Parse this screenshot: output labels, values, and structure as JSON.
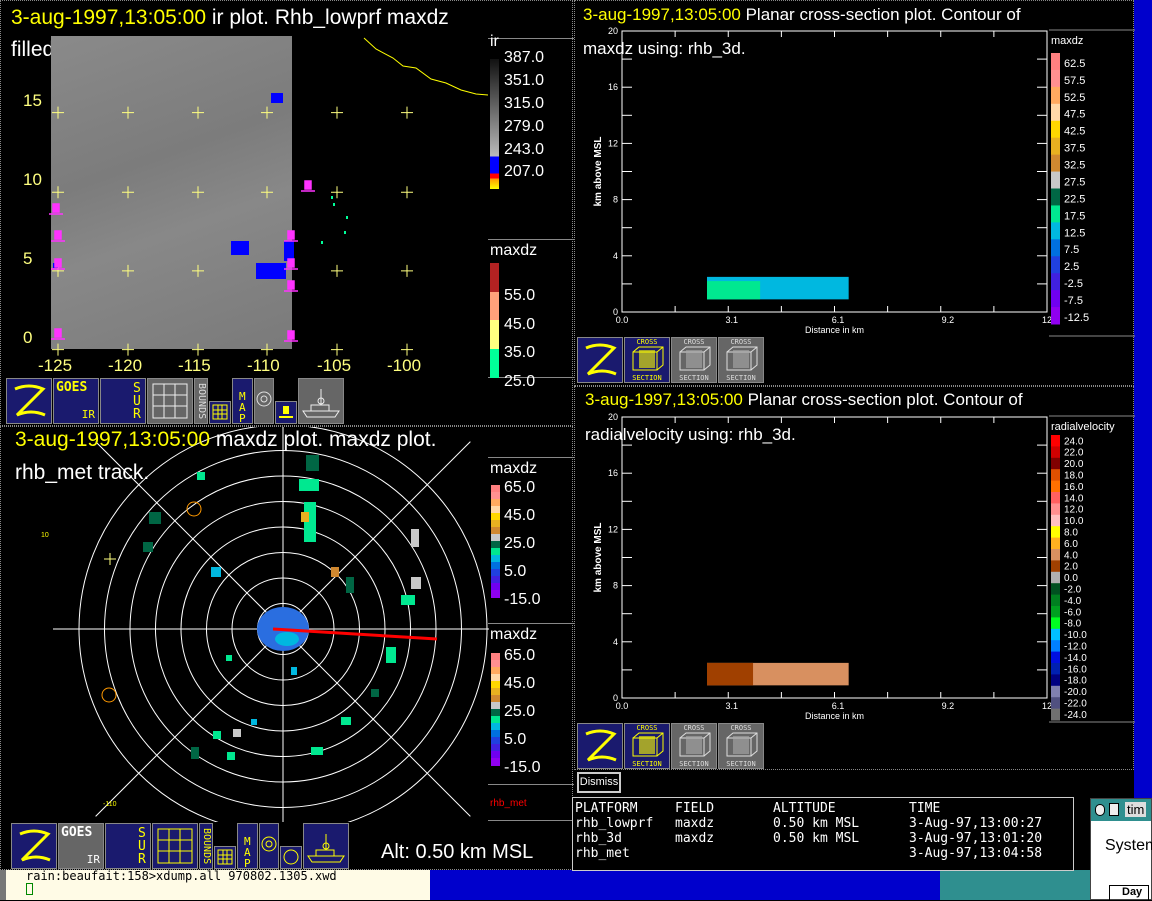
{
  "ir_panel": {
    "timestamp": "3-aug-1997,13:05:00",
    "title_rest": " ir plot.  Rhb_lowprf maxdz",
    "title_line2": "filled contour.",
    "y_ticks": [
      "15",
      "10",
      "5",
      "0"
    ],
    "x_ticks": [
      "-125",
      "-120",
      "-115",
      "-110",
      "-105",
      "-100"
    ],
    "ir_colorbar": {
      "title": "ir",
      "labels": [
        "387.0",
        "351.0",
        "315.0",
        "279.0",
        "243.0",
        "207.0"
      ]
    },
    "maxdz_colorbar": {
      "title": "maxdz",
      "labels": [
        "55.0",
        "45.0",
        "35.0",
        "25.0"
      ],
      "colors": [
        "#b22222",
        "#ffa07a",
        "#ffff80",
        "#00ff99"
      ]
    }
  },
  "radar_panel": {
    "timestamp": "3-aug-1997,13:05:00",
    "title_rest": " maxdz plot.  maxdz plot.",
    "title_line2": "rhb_met track.",
    "colorbar_labels": [
      "65.0",
      "45.0",
      "25.0",
      "5.0",
      "-15.0"
    ],
    "colorbar_title": "maxdz",
    "colorbar_colors": [
      "#ff8080",
      "#ff9090",
      "#ffaa60",
      "#ffd8a8",
      "#ffd700",
      "#e8b020",
      "#d08830",
      "#c8c8c8",
      "#006644",
      "#00e890",
      "#00b8e0",
      "#0070e0",
      "#2040e0",
      "#4020e0",
      "#7000f0",
      "#9000f0"
    ],
    "lat_label": "10",
    "lon_label": "-110",
    "track_legend": "rhb_met",
    "track_color": "#ff0000",
    "alt_label": "Alt: 0.50 km MSL"
  },
  "toolbar_left": {
    "goes": "GOES",
    "ir": "IR",
    "sur": "SUR",
    "bounds": "BOUNDS",
    "map": "MAP"
  },
  "xsec_maxdz": {
    "timestamp": "3-aug-1997,13:05:00",
    "title_rest": " Planar cross-section plot.  Contour of",
    "title_line2": "maxdz using: rhb_3d.",
    "colorbar_title": "maxdz",
    "colorbar_labels": [
      "62.5",
      "57.5",
      "52.5",
      "47.5",
      "42.5",
      "37.5",
      "32.5",
      "27.5",
      "22.5",
      "17.5",
      "12.5",
      "7.5",
      "2.5",
      "-2.5",
      "-7.5",
      "-12.5"
    ],
    "colorbar_colors": [
      "#ff8080",
      "#ff9090",
      "#ffaa60",
      "#ffd8a8",
      "#ffd700",
      "#e8b020",
      "#d08830",
      "#c8c8c8",
      "#006644",
      "#00e890",
      "#00b8e0",
      "#0070e0",
      "#2040e0",
      "#4020e0",
      "#7000f0",
      "#9000f0"
    ],
    "ylabel": "km above MSL",
    "xlabel": "Distance in km",
    "y_ticks": [
      "0",
      "4",
      "8",
      "12",
      "16",
      "20"
    ],
    "x_ticks": [
      "0.0",
      "3.1",
      "6.1",
      "9.2",
      "12"
    ],
    "cells": [
      {
        "x0": 2.4,
        "x1": 6.4,
        "z0": 0.9,
        "z1": 2.5,
        "color": "#00b8e0"
      },
      {
        "x0": 2.4,
        "x1": 3.9,
        "z0": 0.9,
        "z1": 2.2,
        "color": "#00e890"
      }
    ]
  },
  "xsec_vel": {
    "timestamp": "3-aug-1997,13:05:00",
    "title_rest": " Planar cross-section plot.  Contour of",
    "title_line2": "radialvelocity using: rhb_3d.",
    "colorbar_title": "radialvelocity",
    "colorbar_labels": [
      "24.0",
      "22.0",
      "20.0",
      "18.0",
      "16.0",
      "14.0",
      "12.0",
      "10.0",
      "8.0",
      "6.0",
      "4.0",
      "2.0",
      "0.0",
      "-2.0",
      "-4.0",
      "-6.0",
      "-8.0",
      "-10.0",
      "-12.0",
      "-14.0",
      "-16.0",
      "-18.0",
      "-20.0",
      "-22.0",
      "-24.0"
    ],
    "colorbar_colors": [
      "#ff0000",
      "#d00000",
      "#800000",
      "#e05000",
      "#ff7000",
      "#ff6060",
      "#ff9090",
      "#ffc0c0",
      "#ffff00",
      "#ffb020",
      "#d89060",
      "#a04000",
      "#b0b0b0",
      "#005020",
      "#008020",
      "#00a020",
      "#00ff20",
      "#00c0ff",
      "#0080ff",
      "#0010e0",
      "#0020b0",
      "#000080",
      "#8080b0",
      "#505080",
      "#707070"
    ],
    "ylabel": "km above MSL",
    "xlabel": "Distance in km",
    "y_ticks": [
      "0",
      "4",
      "8",
      "12",
      "16",
      "20"
    ],
    "x_ticks": [
      "0.0",
      "3.1",
      "6.1",
      "9.2",
      "12"
    ],
    "cells": [
      {
        "x0": 2.4,
        "x1": 6.4,
        "z0": 0.9,
        "z1": 2.5,
        "color": "#d89060"
      },
      {
        "x0": 2.4,
        "x1": 3.7,
        "z0": 0.9,
        "z1": 2.5,
        "color": "#a04000"
      }
    ]
  },
  "xsec_toolbar": {
    "cross": "CROSS",
    "section": "SECTION"
  },
  "dismiss_label": "Dismiss",
  "info_table": {
    "headers": [
      "PLATFORM",
      "FIELD",
      "ALTITUDE",
      "TIME"
    ],
    "rows": [
      [
        "rhb_lowprf",
        "maxdz",
        "0.50 km MSL",
        "3-Aug-97,13:00:27"
      ],
      [
        "rhb_3d",
        "maxdz",
        "0.50 km MSL",
        "3-Aug-97,13:01:20"
      ],
      [
        "rhb_met",
        "",
        "",
        "3-Aug-97,13:04:58"
      ]
    ]
  },
  "terminal": {
    "prompt": "rain:beaufait:158>xdump.all 970802.1305.xwd"
  },
  "side_window": {
    "title": "tim",
    "label": "System",
    "sub": "Day"
  }
}
